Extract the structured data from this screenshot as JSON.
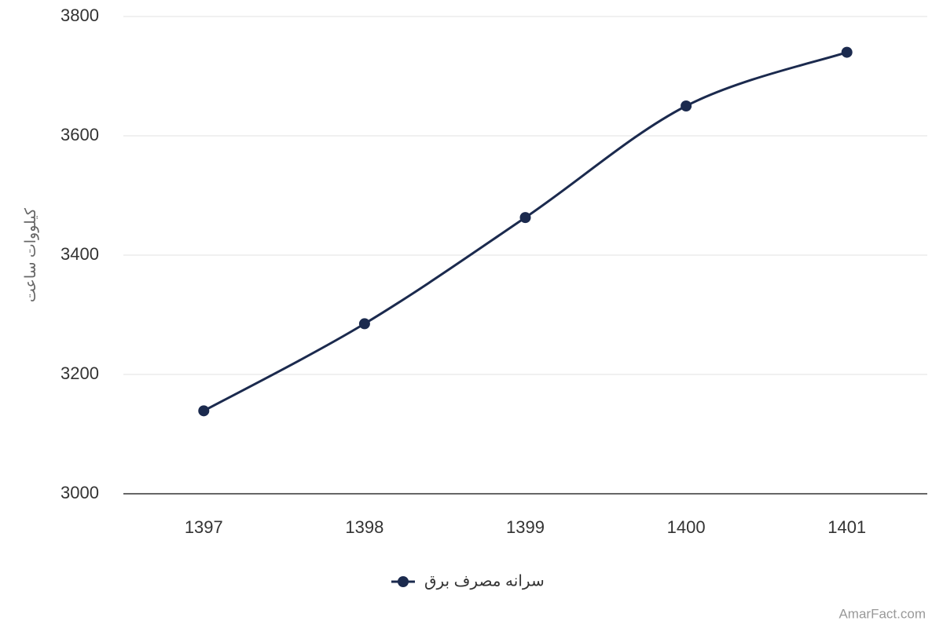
{
  "chart_data": {
    "type": "line",
    "y_label": "کیلووات ساعت",
    "categories": [
      "1397",
      "1398",
      "1399",
      "1400",
      "1401"
    ],
    "series": [
      {
        "name": "سرانه مصرف برق",
        "color": "#1b2a4e",
        "values": [
          3139,
          3285,
          3463,
          3650,
          3740
        ]
      }
    ],
    "ylim": [
      3000,
      3800
    ],
    "yticks": [
      3000,
      3200,
      3400,
      3600,
      3800
    ],
    "grid": true,
    "legend": "bottom",
    "credit": "AmarFact.com"
  }
}
